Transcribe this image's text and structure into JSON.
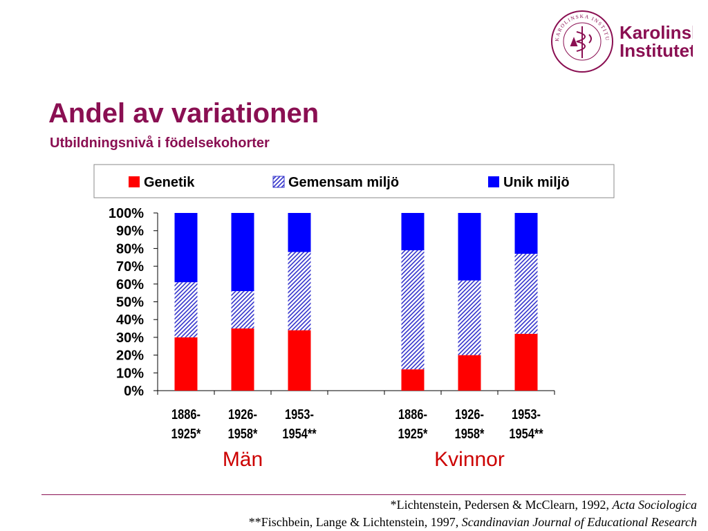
{
  "slide": {
    "title": "Andel av variationen",
    "subtitle": "Utbildningsnivå i födelsekohorter"
  },
  "logo": {
    "name_line1": "Karolinska",
    "name_line2": "Institutet",
    "seal_text": "KAROLINSKA INSTITUTET ANNO 1810",
    "color": "#8a0f52"
  },
  "chart_data": {
    "type": "bar",
    "stacked": true,
    "normalized": true,
    "ylim": [
      0,
      100
    ],
    "y_ticks": [
      "0%",
      "10%",
      "20%",
      "30%",
      "40%",
      "50%",
      "60%",
      "70%",
      "80%",
      "90%",
      "100%"
    ],
    "grid": false,
    "legend_position": "top",
    "groups": [
      {
        "label": "Män",
        "categories": [
          "1886-1925*",
          "1926-1958*",
          "1953-1954**"
        ]
      },
      {
        "label": "Kvinnor",
        "categories": [
          "1886-1925*",
          "1926-1958*",
          "1953-1954**"
        ]
      }
    ],
    "series": [
      {
        "name": "Genetik",
        "color": "#ff0000",
        "pattern": "solid",
        "values": [
          30,
          35,
          34,
          12,
          20,
          32
        ]
      },
      {
        "name": "Gemensam miljö",
        "color": "#3333cc",
        "pattern": "diagonal-hatch",
        "values": [
          31,
          21,
          44,
          67,
          42,
          45
        ]
      },
      {
        "name": "Unik miljö",
        "color": "#0000ff",
        "pattern": "solid",
        "values": [
          39,
          44,
          22,
          21,
          38,
          23
        ]
      }
    ]
  },
  "footnotes": {
    "line1_text": "*Lichtenstein, Pedersen & McClearn, 1992, ",
    "line1_journal": "Acta Sociologica",
    "line2_text": "**Fischbein, Lange & Lichtenstein, 1997, ",
    "line2_journal": "Scandinavian Journal of Educational Research"
  }
}
